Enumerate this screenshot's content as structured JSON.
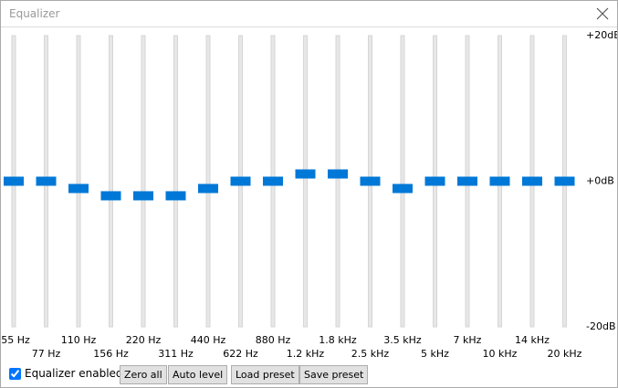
{
  "window": {
    "title": "Equalizer"
  },
  "equalizer": {
    "ylim": [
      -20,
      20
    ],
    "ticks": [
      {
        "value": 20,
        "label": "+20dB"
      },
      {
        "value": 0,
        "label": "+0dB"
      },
      {
        "value": -20,
        "label": "-20dB"
      }
    ],
    "bands": [
      {
        "label": "55 Hz",
        "value": 0
      },
      {
        "label": "77 Hz",
        "value": 0
      },
      {
        "label": "110 Hz",
        "value": -1
      },
      {
        "label": "156 Hz",
        "value": -2
      },
      {
        "label": "220 Hz",
        "value": -2
      },
      {
        "label": "311 Hz",
        "value": -2
      },
      {
        "label": "440 Hz",
        "value": -1
      },
      {
        "label": "622 Hz",
        "value": 0
      },
      {
        "label": "880 Hz",
        "value": 0
      },
      {
        "label": "1.2 kHz",
        "value": 1
      },
      {
        "label": "1.8 kHz",
        "value": 1
      },
      {
        "label": "2.5 kHz",
        "value": 0
      },
      {
        "label": "3.5 kHz",
        "value": -1
      },
      {
        "label": "5 kHz",
        "value": 0
      },
      {
        "label": "7 kHz",
        "value": 0
      },
      {
        "label": "10 kHz",
        "value": 0
      },
      {
        "label": "14 kHz",
        "value": 0
      },
      {
        "label": "20 kHz",
        "value": 0
      }
    ]
  },
  "controls": {
    "enabled_label": "Equalizer enabled",
    "enabled": true,
    "buttons": [
      "Zero all",
      "Auto level",
      "Load preset",
      "Save preset"
    ]
  }
}
